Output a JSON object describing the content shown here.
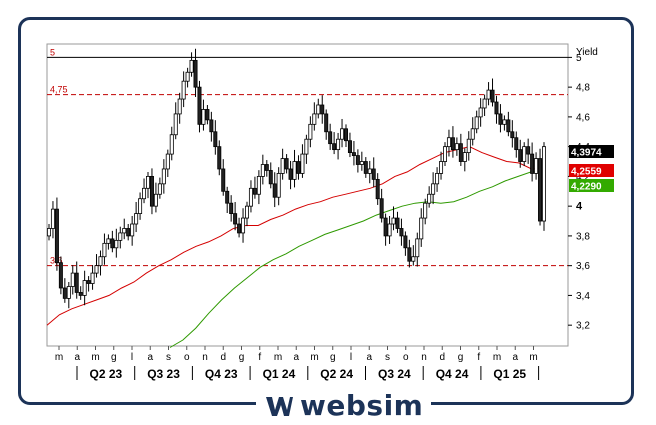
{
  "brand": {
    "name": "websim",
    "icon": "websim-w-logo-icon",
    "color": "#1c3358"
  },
  "chart_data": {
    "type": "candlestick",
    "title": "",
    "ylabel": "Yield",
    "ylim": [
      3.06,
      5.09
    ],
    "yticks": [
      {
        "value": 5,
        "label": "5"
      },
      {
        "value": 4.8,
        "label": "4,8"
      },
      {
        "value": 4.6,
        "label": "4,6"
      },
      {
        "value": 4.4,
        "label": "4,4"
      },
      {
        "value": 4.2,
        "label": "4,2"
      },
      {
        "value": 4,
        "label": "4",
        "bold": true
      },
      {
        "value": 3.8,
        "label": "3,8"
      },
      {
        "value": 3.6,
        "label": "3,6"
      },
      {
        "value": 3.4,
        "label": "3,4"
      },
      {
        "value": 3.2,
        "label": "3,2"
      }
    ],
    "x_month_labels": [
      "m",
      "a",
      "m",
      "g",
      "l",
      "a",
      "s",
      "o",
      "n",
      "d",
      "g",
      "f",
      "m",
      "a",
      "m",
      "g",
      "l",
      "a",
      "s",
      "o",
      "n",
      "d",
      "g",
      "f",
      "m",
      "a",
      "m"
    ],
    "quarters": [
      "Q2 23",
      "Q3 23",
      "Q4 23",
      "Q1 24",
      "Q2 24",
      "Q3 24",
      "Q4 24",
      "Q1 25"
    ],
    "hlines": [
      {
        "value": 5,
        "label": "5",
        "style": "solid",
        "color": "#000000"
      },
      {
        "value": 4.75,
        "label": "4,75",
        "style": "dashed",
        "color": "#c00000"
      },
      {
        "value": 3.6,
        "label": "3,6",
        "style": "dashed",
        "color": "#c00000"
      }
    ],
    "value_tags": [
      {
        "value": 4.3974,
        "label": "4,3974",
        "bg": "#000000",
        "fg": "#ffffff"
      },
      {
        "value": 4.2559,
        "label": "4,2559",
        "bg": "#e00000",
        "fg": "#ffffff"
      },
      {
        "value": 4.229,
        "label": "4,2290",
        "bg": "#33aa00",
        "fg": "#ffffff"
      }
    ],
    "candle_closes": [
      3.85,
      3.98,
      3.62,
      3.45,
      3.38,
      3.46,
      3.55,
      3.42,
      3.4,
      3.5,
      3.48,
      3.55,
      3.6,
      3.66,
      3.75,
      3.78,
      3.72,
      3.77,
      3.82,
      3.85,
      3.8,
      3.88,
      3.95,
      4.05,
      4.12,
      4.2,
      4.0,
      4.08,
      4.15,
      4.25,
      4.35,
      4.48,
      4.62,
      4.72,
      4.84,
      4.9,
      4.98,
      4.8,
      4.55,
      4.65,
      4.58,
      4.5,
      4.4,
      4.25,
      4.1,
      4.02,
      3.95,
      3.88,
      3.82,
      3.92,
      4.0,
      4.12,
      4.08,
      4.2,
      4.28,
      4.24,
      4.15,
      4.06,
      4.22,
      4.32,
      4.25,
      4.18,
      4.3,
      4.22,
      4.35,
      4.45,
      4.55,
      4.62,
      4.68,
      4.62,
      4.5,
      4.42,
      4.38,
      4.45,
      4.52,
      4.44,
      4.36,
      4.34,
      4.28,
      4.3,
      4.22,
      4.25,
      4.18,
      4.05,
      3.92,
      3.8,
      3.88,
      3.92,
      3.85,
      3.8,
      3.72,
      3.63,
      3.66,
      3.78,
      3.92,
      4.02,
      4.08,
      4.15,
      4.22,
      4.3,
      4.4,
      4.46,
      4.38,
      4.42,
      4.3,
      4.36,
      4.45,
      4.52,
      4.6,
      4.66,
      4.72,
      4.78,
      4.7,
      4.62,
      4.55,
      4.58,
      4.5,
      4.46,
      4.38,
      4.3,
      4.4,
      4.35,
      4.22,
      4.32,
      3.9,
      4.4
    ],
    "series": [
      {
        "name": "",
        "color": "#d40000",
        "values": [
          3.2,
          3.27,
          3.31,
          3.34,
          3.37,
          3.4,
          3.45,
          3.49,
          3.55,
          3.6,
          3.64,
          3.69,
          3.73,
          3.76,
          3.8,
          3.85,
          3.87,
          3.87,
          3.91,
          3.94,
          3.98,
          4.01,
          4.03,
          4.06,
          4.08,
          4.1,
          4.12,
          4.15,
          4.2,
          4.23,
          4.28,
          4.32,
          4.36,
          4.38,
          4.4,
          4.36,
          4.33,
          4.3,
          4.29,
          4.25,
          4.26
        ]
      },
      {
        "name": "",
        "color": "#2e9900",
        "values": [
          3.05,
          3.1,
          3.18,
          3.28,
          3.37,
          3.45,
          3.52,
          3.59,
          3.64,
          3.68,
          3.73,
          3.77,
          3.81,
          3.84,
          3.87,
          3.9,
          3.94,
          3.97,
          4.0,
          4.02,
          4.03,
          4.02,
          4.03,
          4.06,
          4.1,
          4.13,
          4.17,
          4.2,
          4.23,
          4.23
        ]
      }
    ]
  }
}
